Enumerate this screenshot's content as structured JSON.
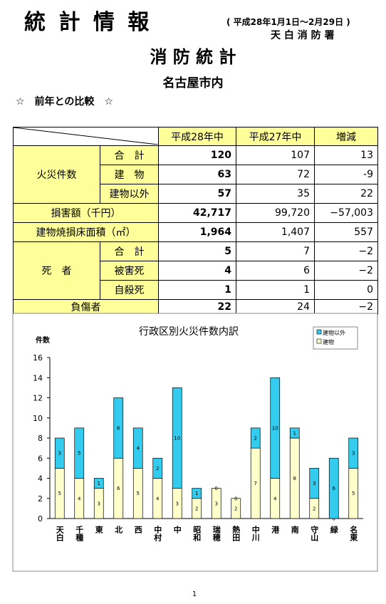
{
  "header": {
    "title": "統 計 情 報",
    "period": "( 平成28年1月1日～2月29日 )",
    "station": "天 白 消 防 署",
    "subtitle": "消 防 統 計",
    "area": "名古屋市内",
    "section": "☆　前年との比較　☆"
  },
  "table": {
    "columns": [
      "平成28年中",
      "平成27年中",
      "増減"
    ],
    "fire": {
      "label": "火災件数",
      "rows": [
        [
          "合　計",
          "120",
          "107",
          "13"
        ],
        [
          "建　物",
          "63",
          "72",
          "-9"
        ],
        [
          "建物以外",
          "57",
          "35",
          "22"
        ]
      ]
    },
    "damage": [
      "損害額（千円）",
      "42,717",
      "99,720",
      "−57,003"
    ],
    "area": [
      "建物焼損床面積（㎡）",
      "1,964",
      "1,407",
      "557"
    ],
    "death": {
      "label": "死　者",
      "rows": [
        [
          "合　計",
          "5",
          "7",
          "−2"
        ],
        [
          "被害死",
          "4",
          "6",
          "−2"
        ],
        [
          "自殺死",
          "1",
          "1",
          "0"
        ]
      ]
    },
    "injured": [
      "負傷者",
      "22",
      "24",
      "−2"
    ]
  },
  "chart_data": {
    "type": "bar",
    "stacked": true,
    "title": "行政区別火災件数内訳",
    "y_label": "件数",
    "categories": [
      "天白",
      "千種",
      "東",
      "北",
      "西",
      "中村",
      "中",
      "昭和",
      "瑞穂",
      "熱田",
      "中川",
      "港",
      "南",
      "守山",
      "緑",
      "名東"
    ],
    "series": [
      {
        "name": "建物以外",
        "color": "#33ccee",
        "values": [
          3,
          5,
          1,
          6,
          4,
          2,
          10,
          1,
          0,
          0,
          2,
          10,
          1,
          3,
          6,
          3
        ]
      },
      {
        "name": "建物",
        "color": "#ffffcc",
        "values": [
          5,
          4,
          3,
          6,
          5,
          4,
          3,
          2,
          3,
          2,
          7,
          4,
          8,
          2,
          0,
          5
        ]
      }
    ],
    "ylim": [
      0,
      16
    ],
    "yticks": [
      0,
      2,
      4,
      6,
      8,
      10,
      12,
      14,
      16
    ]
  },
  "page": "1"
}
